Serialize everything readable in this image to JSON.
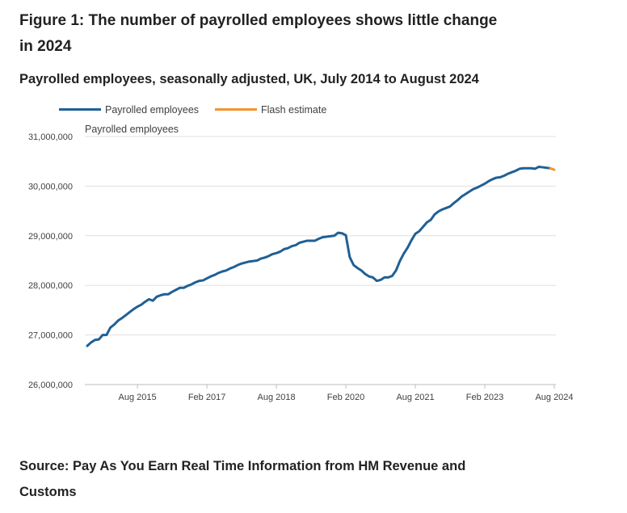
{
  "title": "Figure 1: The number of payrolled employees shows little change in 2024",
  "subtitle": "Payrolled employees, seasonally adjusted, UK, July 2014 to August 2024",
  "source": "Source: Pay As You Earn Real Time Information from HM Revenue and Customs",
  "colors": {
    "payrolled": "#206095",
    "flash": "#f39431",
    "grid": "#e0e0e0",
    "axis": "#bebebe",
    "text": "#414042"
  },
  "chart_data": {
    "type": "line",
    "title": "Payrolled employees, seasonally adjusted, UK, July 2014 to August 2024",
    "ylabel": "Payrolled employees",
    "xlabel": "",
    "ylim": [
      26000000,
      31000000
    ],
    "y_ticks": [
      26000000,
      27000000,
      28000000,
      29000000,
      30000000,
      31000000
    ],
    "y_tick_labels": [
      "26,000,000",
      "27,000,000",
      "28,000,000",
      "29,000,000",
      "30,000,000",
      "31,000,000"
    ],
    "x_ticks": [
      "2015-08",
      "2017-02",
      "2018-08",
      "2020-02",
      "2021-08",
      "2023-02",
      "2024-08"
    ],
    "x_tick_labels": [
      "Aug 2015",
      "Feb 2017",
      "Aug 2018",
      "Feb 2020",
      "Aug 2021",
      "Feb 2023",
      "Aug 2024"
    ],
    "xlim": [
      "2014-07",
      "2024-08"
    ],
    "grid": "horizontal",
    "legend": "top-left",
    "series": [
      {
        "name": "Payrolled employees",
        "color": "#206095",
        "points": [
          [
            "2014-07",
            26780000
          ],
          [
            "2014-08",
            26850000
          ],
          [
            "2014-09",
            26900000
          ],
          [
            "2014-10",
            26910000
          ],
          [
            "2014-11",
            27000000
          ],
          [
            "2014-12",
            27000000
          ],
          [
            "2015-01",
            27150000
          ],
          [
            "2015-02",
            27210000
          ],
          [
            "2015-03",
            27290000
          ],
          [
            "2015-04",
            27340000
          ],
          [
            "2015-05",
            27400000
          ],
          [
            "2015-06",
            27460000
          ],
          [
            "2015-07",
            27520000
          ],
          [
            "2015-08",
            27570000
          ],
          [
            "2015-09",
            27610000
          ],
          [
            "2015-10",
            27670000
          ],
          [
            "2015-11",
            27720000
          ],
          [
            "2015-12",
            27690000
          ],
          [
            "2016-01",
            27770000
          ],
          [
            "2016-02",
            27800000
          ],
          [
            "2016-03",
            27820000
          ],
          [
            "2016-04",
            27820000
          ],
          [
            "2016-05",
            27870000
          ],
          [
            "2016-06",
            27910000
          ],
          [
            "2016-07",
            27950000
          ],
          [
            "2016-08",
            27950000
          ],
          [
            "2016-09",
            27990000
          ],
          [
            "2016-10",
            28020000
          ],
          [
            "2016-11",
            28060000
          ],
          [
            "2016-12",
            28090000
          ],
          [
            "2017-01",
            28100000
          ],
          [
            "2017-02",
            28140000
          ],
          [
            "2017-03",
            28180000
          ],
          [
            "2017-04",
            28210000
          ],
          [
            "2017-05",
            28250000
          ],
          [
            "2017-06",
            28280000
          ],
          [
            "2017-07",
            28300000
          ],
          [
            "2017-08",
            28340000
          ],
          [
            "2017-09",
            28370000
          ],
          [
            "2017-10",
            28410000
          ],
          [
            "2017-11",
            28440000
          ],
          [
            "2017-12",
            28460000
          ],
          [
            "2018-01",
            28480000
          ],
          [
            "2018-02",
            28490000
          ],
          [
            "2018-03",
            28500000
          ],
          [
            "2018-04",
            28540000
          ],
          [
            "2018-05",
            28560000
          ],
          [
            "2018-06",
            28590000
          ],
          [
            "2018-07",
            28630000
          ],
          [
            "2018-08",
            28650000
          ],
          [
            "2018-09",
            28680000
          ],
          [
            "2018-10",
            28730000
          ],
          [
            "2018-11",
            28750000
          ],
          [
            "2018-12",
            28790000
          ],
          [
            "2019-01",
            28810000
          ],
          [
            "2019-02",
            28860000
          ],
          [
            "2019-03",
            28880000
          ],
          [
            "2019-04",
            28900000
          ],
          [
            "2019-05",
            28900000
          ],
          [
            "2019-06",
            28900000
          ],
          [
            "2019-07",
            28940000
          ],
          [
            "2019-08",
            28970000
          ],
          [
            "2019-09",
            28980000
          ],
          [
            "2019-10",
            28990000
          ],
          [
            "2019-11",
            29000000
          ],
          [
            "2019-12",
            29060000
          ],
          [
            "2020-01",
            29050000
          ],
          [
            "2020-02",
            29010000
          ],
          [
            "2020-03",
            28570000
          ],
          [
            "2020-04",
            28410000
          ],
          [
            "2020-05",
            28350000
          ],
          [
            "2020-06",
            28300000
          ],
          [
            "2020-07",
            28230000
          ],
          [
            "2020-08",
            28180000
          ],
          [
            "2020-09",
            28160000
          ],
          [
            "2020-10",
            28090000
          ],
          [
            "2020-11",
            28110000
          ],
          [
            "2020-12",
            28160000
          ],
          [
            "2021-01",
            28160000
          ],
          [
            "2021-02",
            28190000
          ],
          [
            "2021-03",
            28300000
          ],
          [
            "2021-04",
            28490000
          ],
          [
            "2021-05",
            28640000
          ],
          [
            "2021-06",
            28760000
          ],
          [
            "2021-07",
            28910000
          ],
          [
            "2021-08",
            29040000
          ],
          [
            "2021-09",
            29090000
          ],
          [
            "2021-10",
            29180000
          ],
          [
            "2021-11",
            29270000
          ],
          [
            "2021-12",
            29320000
          ],
          [
            "2022-01",
            29430000
          ],
          [
            "2022-02",
            29490000
          ],
          [
            "2022-03",
            29530000
          ],
          [
            "2022-04",
            29560000
          ],
          [
            "2022-05",
            29590000
          ],
          [
            "2022-06",
            29660000
          ],
          [
            "2022-07",
            29720000
          ],
          [
            "2022-08",
            29790000
          ],
          [
            "2022-09",
            29840000
          ],
          [
            "2022-10",
            29890000
          ],
          [
            "2022-11",
            29940000
          ],
          [
            "2022-12",
            29970000
          ],
          [
            "2023-01",
            30010000
          ],
          [
            "2023-02",
            30050000
          ],
          [
            "2023-03",
            30100000
          ],
          [
            "2023-04",
            30140000
          ],
          [
            "2023-05",
            30170000
          ],
          [
            "2023-06",
            30180000
          ],
          [
            "2023-07",
            30210000
          ],
          [
            "2023-08",
            30250000
          ],
          [
            "2023-09",
            30280000
          ],
          [
            "2023-10",
            30310000
          ],
          [
            "2023-11",
            30350000
          ],
          [
            "2023-12",
            30360000
          ],
          [
            "2024-01",
            30360000
          ],
          [
            "2024-02",
            30360000
          ],
          [
            "2024-03",
            30350000
          ],
          [
            "2024-04",
            30390000
          ],
          [
            "2024-05",
            30380000
          ],
          [
            "2024-06",
            30370000
          ],
          [
            "2024-07",
            30360000
          ]
        ]
      },
      {
        "name": "Flash estimate",
        "color": "#f39431",
        "points": [
          [
            "2024-07",
            30360000
          ],
          [
            "2024-08",
            30330000
          ]
        ]
      }
    ]
  }
}
